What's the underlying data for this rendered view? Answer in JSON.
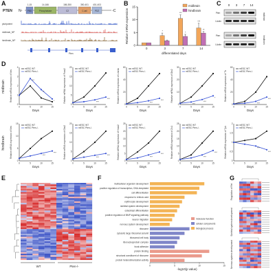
{
  "panels": {
    "a": "A",
    "b": "B",
    "c": "C",
    "d": "D",
    "e": "E",
    "f": "F",
    "g": "G"
  },
  "panel_a": {
    "gene": "PTEN",
    "n_term": "N-",
    "c_term": "-C",
    "domains": [
      {
        "name": "PBD",
        "range": "1-15",
        "color": "#7f92c8"
      },
      {
        "name": "Phosphatase",
        "range": "14-166",
        "color": "#9bb566"
      },
      {
        "name": "C2",
        "range": "186-350",
        "color": "#bcbcd6"
      },
      {
        "name": "C-tail",
        "range": "350-401",
        "color": "#e0a06a"
      },
      {
        "name": "PDZ",
        "range": "401-403",
        "color": "#a8b8d8"
      }
    ],
    "tracks": [
      {
        "label": "pluripotent",
        "color": "#3a5fcd"
      },
      {
        "label": "midbrain_NP",
        "color": "#d9534f"
      },
      {
        "label": "hindbrain_NP",
        "color": "#8b6a3a"
      }
    ],
    "gene_label": "Pten"
  },
  "chart_data": [
    {
      "id": "B",
      "type": "bar",
      "categories": [
        "0",
        "3",
        "7",
        "14"
      ],
      "series": [
        {
          "name": "midbrain",
          "color": "#f2a65a",
          "values": [
            1,
            3.8,
            10.5,
            6.8
          ],
          "errors": [
            0,
            1.0,
            1.4,
            1.8
          ],
          "stars": [
            "",
            "*",
            "***",
            "***"
          ]
        },
        {
          "name": "hindbrain",
          "color": "#c06fb3",
          "values": [
            1,
            1.8,
            3.5,
            4.8
          ],
          "errors": [
            0,
            0.3,
            0.8,
            0.6
          ],
          "stars": [
            "",
            "",
            "*",
            "**"
          ]
        }
      ],
      "xlabel": "differentiated days",
      "ylabel": "Relative mRNA expression",
      "ylim": [
        0,
        15
      ],
      "yticks": [
        0,
        5,
        10,
        15
      ]
    },
    {
      "id": "D",
      "type": "line",
      "rows": [
        {
          "row_label": "midbrain",
          "plots": [
            {
              "ylabel": "Relative mRNA expression of Nes",
              "x": [
                0,
                5,
                10,
                15
              ],
              "ylim": [
                0,
                4
              ],
              "yticks": [
                0,
                1,
                2,
                3,
                4
              ],
              "wt": [
                1,
                2.0,
                0.7,
                0.3
              ],
              "ko": [
                1,
                2.8,
                1.6,
                0.6
              ],
              "stars": [
                "***",
                "**",
                "*"
              ],
              "xlabel": "Days"
            },
            {
              "ylabel": "Relative mRNA expression of Foxa2",
              "x": [
                0,
                5,
                10,
                15
              ],
              "ylim": [
                0,
                20
              ],
              "yticks": [
                0,
                5,
                10,
                15,
                20
              ],
              "wt": [
                1,
                4,
                10,
                17
              ],
              "ko": [
                1,
                1.5,
                2.5,
                4
              ],
              "stars": [
                "***",
                "***"
              ],
              "xlabel": "Days"
            },
            {
              "ylabel": "Relative mRNA expression of Lmx1a",
              "x": [
                0,
                5,
                10,
                15
              ],
              "ylim": [
                0,
                60
              ],
              "yticks": [
                0,
                20,
                40,
                60
              ],
              "wt": [
                1,
                10,
                30,
                50
              ],
              "ko": [
                1,
                3,
                6,
                10
              ],
              "stars": [
                "***",
                "***"
              ],
              "xlabel": "Days"
            },
            {
              "ylabel": "Relative mRNA expression of Otx2",
              "x": [
                0,
                5,
                10,
                15
              ],
              "ylim": [
                0,
                30
              ],
              "yticks": [
                0,
                10,
                20,
                30
              ],
              "wt": [
                1,
                6,
                15,
                25
              ],
              "ko": [
                1,
                2,
                4,
                7
              ],
              "stars": [
                "***",
                "***",
                "*"
              ],
              "xlabel": "Days"
            },
            {
              "ylabel": "Relative mRNA expression of Th",
              "x": [
                0,
                5,
                10,
                15
              ],
              "ylim": [
                0,
                60
              ],
              "yticks": [
                0,
                20,
                40,
                60
              ],
              "wt": [
                1,
                5,
                20,
                45
              ],
              "ko": [
                1,
                2,
                5,
                12
              ],
              "stars": [
                "***",
                "***"
              ],
              "xlabel": "Days"
            }
          ]
        },
        {
          "row_label": "hindbrain",
          "plots": [
            {
              "ylabel": "Relative mRNA expression of Nes",
              "x": [
                0,
                5,
                10,
                15
              ],
              "ylim": [
                0,
                15
              ],
              "yticks": [
                0,
                5,
                10,
                15
              ],
              "wt": [
                1,
                5,
                9,
                12
              ],
              "ko": [
                1,
                2,
                3,
                4
              ],
              "stars": [
                "***",
                "***"
              ],
              "xlabel": "Days"
            },
            {
              "ylabel": "Relative mRNA expression of Gbx2",
              "x": [
                0,
                5,
                10,
                15
              ],
              "ylim": [
                0,
                20
              ],
              "yticks": [
                0,
                5,
                10,
                15,
                20
              ],
              "wt": [
                1,
                5,
                10,
                16
              ],
              "ko": [
                1,
                2,
                3,
                4
              ],
              "stars": [
                "***",
                "***"
              ],
              "xlabel": "Days"
            },
            {
              "ylabel": "Relative mRNA expression of Hoxa2",
              "x": [
                0,
                5,
                10,
                15
              ],
              "ylim": [
                0,
                25
              ],
              "yticks": [
                0,
                5,
                10,
                15,
                20,
                25
              ],
              "wt": [
                1,
                6,
                12,
                20
              ],
              "ko": [
                1,
                2,
                4,
                6
              ],
              "stars": [
                "***",
                "***"
              ],
              "xlabel": "Days"
            },
            {
              "ylabel": "Relative mRNA expression of Zic1",
              "x": [
                0,
                5,
                10,
                15
              ],
              "ylim": [
                0,
                25
              ],
              "yticks": [
                0,
                5,
                10,
                15,
                20,
                25
              ],
              "wt": [
                1,
                4,
                12,
                20
              ],
              "ko": [
                1,
                2,
                4,
                7
              ],
              "stars": [
                "***",
                "***"
              ],
              "xlabel": "Days"
            },
            {
              "ylabel": "Relative mRNA expression of Tph",
              "x": [
                0,
                5,
                10,
                15
              ],
              "ylim": [
                0,
                2
              ],
              "yticks": [
                0,
                0.5,
                1,
                1.5,
                2
              ],
              "wt": [
                1,
                1.1,
                1.2,
                1.6
              ],
              "ko": [
                1,
                0.9,
                0.8,
                0.6
              ],
              "stars": [
                "***",
                "***"
              ],
              "xlabel": "Days"
            }
          ]
        }
      ],
      "legend": [
        "mESC WT",
        "mESC Pten-/-"
      ]
    },
    {
      "id": "F",
      "type": "bar",
      "orientation": "horizontal",
      "xlabel": "-log10(p value)",
      "xlim": [
        0,
        15
      ],
      "xticks": [
        0,
        5,
        10,
        15
      ],
      "categories": [
        "multicellular organism development",
        "positive regulation of transcription, DNA-templated",
        "cell differentiation",
        "response to retinoic acid",
        "erythrocyte development",
        "skeletal system development",
        "osteoblast differentiation",
        "positive regulation of BMP signaling pathway",
        "neuron migration",
        "nervous system development",
        "ribosome",
        "cytosolic large ribosomal subunit",
        "ribosomal cell body",
        "ribonucleoprotein complex",
        "focal adhesion",
        "protein binding",
        "structural constituent of ribosome",
        "protein heterodimerization activity"
      ],
      "values": [
        11,
        10,
        9.5,
        7,
        6.5,
        6,
        5.5,
        5,
        4.5,
        4,
        8,
        7,
        6,
        5.5,
        5,
        12,
        10.5,
        7
      ],
      "groups": [
        2,
        2,
        2,
        2,
        2,
        2,
        2,
        2,
        2,
        2,
        1,
        1,
        1,
        1,
        1,
        0,
        0,
        0
      ],
      "legend": [
        "molecular function",
        "cellular components",
        "biological process"
      ],
      "legend_colors": [
        "#ea9a8c",
        "#7f86c8",
        "#f3b456"
      ],
      "legend_position": "center-right"
    }
  ],
  "panel_c": {
    "days": [
      "0",
      "3",
      "7",
      "14"
    ],
    "blots": [
      {
        "protein": "Pten",
        "group": "midbrain"
      },
      {
        "protein": "β-Actin",
        "group": "midbrain"
      },
      {
        "protein": "Pten",
        "group": "hindbrain"
      },
      {
        "protein": "β-Actin",
        "group": "hindbrain"
      }
    ],
    "side_labels": [
      "midbrain",
      "hindbrain"
    ]
  },
  "panel_e": {
    "x_labels": [
      "WT",
      "Pten-/-"
    ],
    "colors": {
      "high": "#d62a2a",
      "low": "#3b53c6",
      "mid": "#ffffff"
    }
  },
  "panel_g": {
    "row_labels": [
      "Regulation of Ret",
      "Skeletal system development",
      "Nervous system development"
    ]
  }
}
